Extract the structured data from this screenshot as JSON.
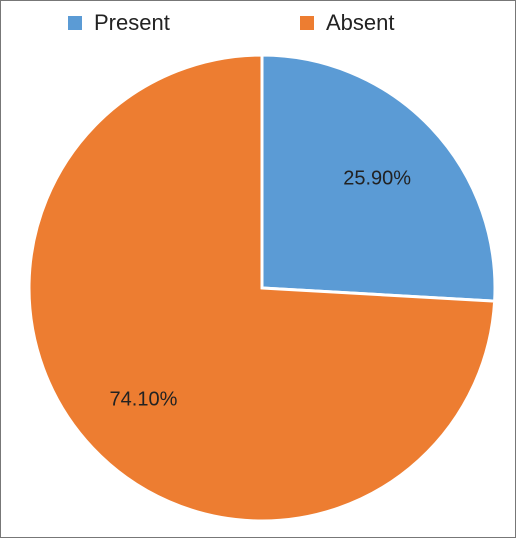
{
  "chart_data": {
    "type": "pie",
    "categories": [
      "Present",
      "Absent"
    ],
    "values": [
      25.9,
      74.1
    ],
    "value_labels": [
      "25.90%",
      "74.10%"
    ],
    "colors": [
      "#5b9bd5",
      "#ed7d31"
    ],
    "legend": "top"
  }
}
